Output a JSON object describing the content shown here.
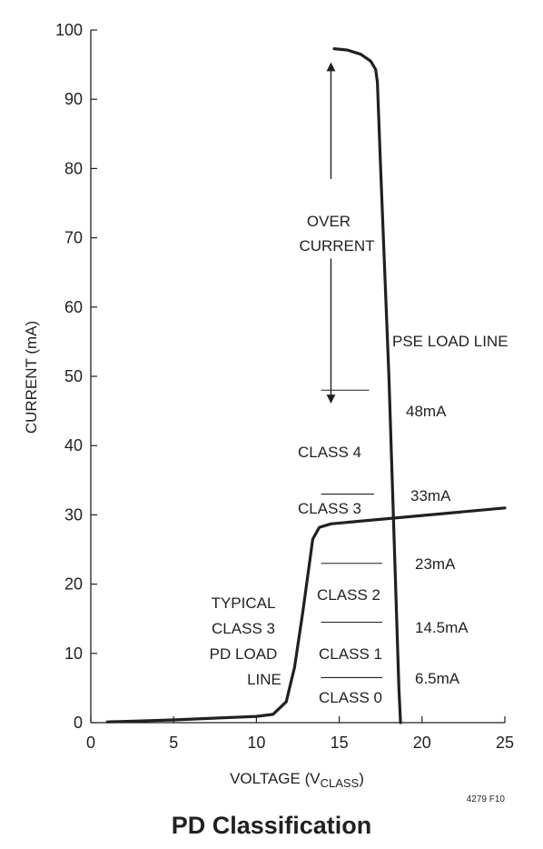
{
  "chart_data": {
    "type": "line",
    "title": "PD Classification",
    "figure_id": "4279 F10",
    "xlabel": {
      "main": "VOLTAGE (V",
      "sub": "CLASS",
      "close": ")"
    },
    "ylabel": "CURRENT (mA)",
    "xlim": [
      0,
      25
    ],
    "ylim": [
      0,
      100
    ],
    "xticks": [
      0,
      5,
      10,
      15,
      20,
      25
    ],
    "yticks": [
      0,
      10,
      20,
      30,
      40,
      50,
      60,
      70,
      80,
      90,
      100
    ],
    "xtick_labels": [
      "0",
      "5",
      "10",
      "15",
      "20",
      "25"
    ],
    "ytick_labels": [
      "0",
      "10",
      "20",
      "30",
      "40",
      "50",
      "60",
      "70",
      "80",
      "90",
      "100"
    ],
    "grid": false,
    "series": [
      {
        "name": "PSE LOAD LINE",
        "x": [
          14.7,
          15.5,
          16.3,
          16.9,
          17.2,
          17.3,
          17.5,
          18.0,
          18.6,
          18.7
        ],
        "y": [
          97.3,
          97.1,
          96.5,
          95.5,
          94.3,
          92.5,
          80.0,
          50.0,
          5.0,
          0
        ]
      },
      {
        "name": "TYPICAL CLASS 3 PD LOAD LINE",
        "x": [
          1.0,
          5.0,
          10.0,
          11.0,
          11.8,
          12.3,
          12.8,
          13.2,
          13.4,
          13.8,
          14.5,
          25.0
        ],
        "y": [
          0.1,
          0.4,
          0.9,
          1.2,
          3.0,
          8.0,
          16.0,
          23.0,
          26.5,
          28.2,
          28.7,
          31.0
        ]
      }
    ],
    "class_thresholds": [
      {
        "value": 6.5,
        "label": "6.5mA"
      },
      {
        "value": 14.5,
        "label": "14.5mA"
      },
      {
        "value": 23,
        "label": "23mA"
      },
      {
        "value": 33,
        "label": "33mA"
      },
      {
        "value": 48,
        "label": "48mA"
      }
    ],
    "class_labels": [
      "CLASS 0",
      "CLASS 1",
      "CLASS 2",
      "CLASS 3",
      "CLASS 4"
    ],
    "annotations": {
      "over_current": [
        "OVER",
        "CURRENT"
      ],
      "pse_load_line": "PSE LOAD LINE",
      "pd_load_line": [
        "TYPICAL",
        "CLASS 3",
        "PD LOAD",
        "LINE"
      ]
    }
  }
}
